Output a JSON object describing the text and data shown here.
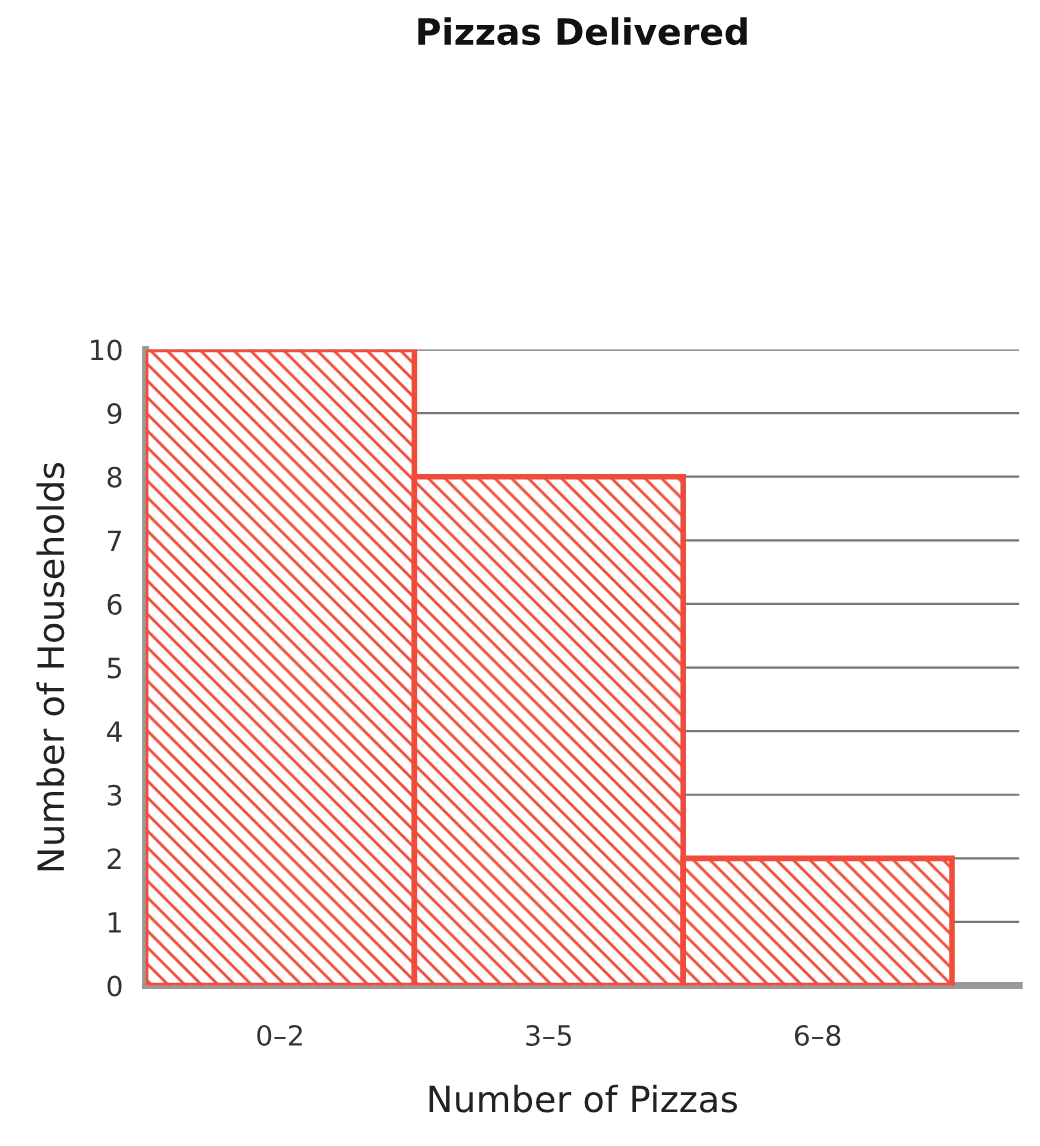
{
  "chart_data": {
    "type": "bar",
    "title": "Pizzas Delivered",
    "xlabel": "Number of Pizzas",
    "ylabel": "Number of Households",
    "categories": [
      "0–2",
      "3–5",
      "6–8"
    ],
    "values": [
      10,
      8,
      2
    ],
    "color": "#ef4c3a",
    "ylim": [
      0,
      10
    ],
    "yticks": [
      0,
      1,
      2,
      3,
      4,
      5,
      6,
      7,
      8,
      9,
      10
    ],
    "grid": "y"
  }
}
